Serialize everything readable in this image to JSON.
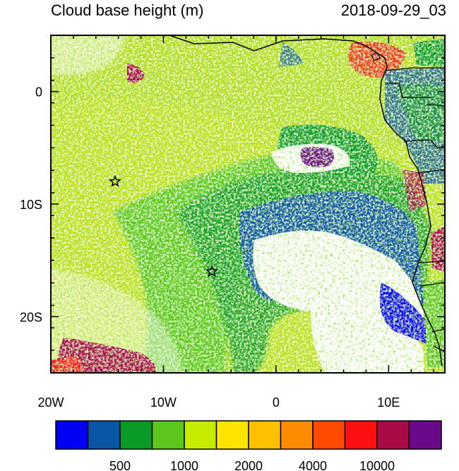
{
  "title_left": "Cloud base height (m)",
  "title_right": "2018-09-29_03",
  "map": {
    "lon_range": [
      -20,
      15
    ],
    "lat_range": [
      -25,
      5
    ],
    "x_ticks": [
      {
        "value": -20,
        "label": "20W"
      },
      {
        "value": -10,
        "label": "10W"
      },
      {
        "value": 0,
        "label": "0"
      },
      {
        "value": 10,
        "label": "10E"
      }
    ],
    "y_ticks": [
      {
        "value": 0,
        "label": "0"
      },
      {
        "value": -10,
        "label": "10S"
      },
      {
        "value": -20,
        "label": "20S"
      }
    ],
    "markers": [
      {
        "name": "star",
        "lon": -14.3,
        "lat": -8.0
      },
      {
        "name": "star",
        "lon": -5.7,
        "lat": -16.0
      }
    ]
  },
  "colorbar": {
    "colors": [
      "#0000f5",
      "#0a55a5",
      "#0a9a28",
      "#5ac81a",
      "#c8ec00",
      "#ffe400",
      "#ffc000",
      "#ff8c00",
      "#ff4a00",
      "#ff1010",
      "#aa0a46",
      "#6a0a8a"
    ],
    "labels": [
      {
        "after_box": 2,
        "text": "500"
      },
      {
        "after_box": 4,
        "text": "1000"
      },
      {
        "after_box": 6,
        "text": "2000"
      },
      {
        "after_box": 8,
        "text": "4000"
      },
      {
        "after_box": 10,
        "text": "10000"
      }
    ]
  }
}
